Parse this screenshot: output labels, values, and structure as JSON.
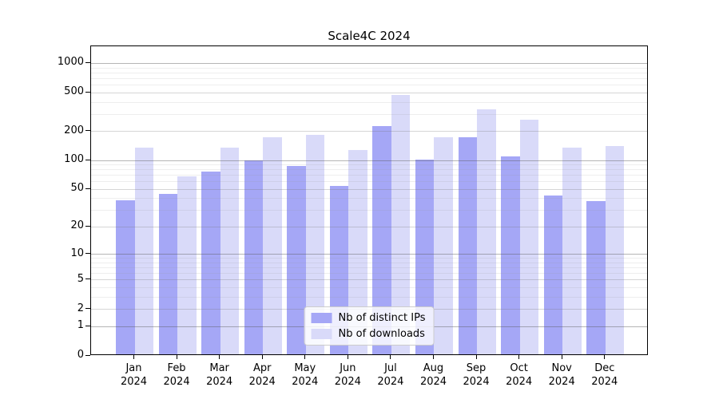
{
  "title": "Scale4C 2024",
  "legend": {
    "items": [
      "Nb of distinct IPs",
      "Nb of downloads"
    ]
  },
  "colors": {
    "series_ips": "#a5a7f6",
    "series_downloads": "#d9daf9",
    "grid_major": "#b0b0b0",
    "grid_minor": "#eaeaea",
    "axis": "#000000"
  },
  "chart_data": {
    "type": "bar",
    "title": "Scale4C 2024",
    "categories": [
      "Jan 2024",
      "Feb 2024",
      "Mar 2024",
      "Apr 2024",
      "May 2024",
      "Jun 2024",
      "Jul 2024",
      "Aug 2024",
      "Sep 2024",
      "Oct 2024",
      "Nov 2024",
      "Dec 2024"
    ],
    "series": [
      {
        "name": "Nb of distinct IPs",
        "color": "#a5a7f6",
        "values": [
          37,
          43,
          74,
          96,
          84,
          52,
          220,
          99,
          167,
          107,
          42,
          36
        ]
      },
      {
        "name": "Nb of downloads",
        "color": "#d9daf9",
        "values": [
          130,
          66,
          132,
          168,
          178,
          124,
          460,
          168,
          325,
          255,
          131,
          136
        ]
      }
    ],
    "xlabel": "",
    "ylabel": "",
    "yscale": "log1p",
    "yticks": [
      0,
      1,
      2,
      5,
      10,
      20,
      50,
      100,
      200,
      500,
      1000
    ],
    "ylim": [
      0,
      1500
    ],
    "grid": true,
    "legend_position": "lower center"
  }
}
